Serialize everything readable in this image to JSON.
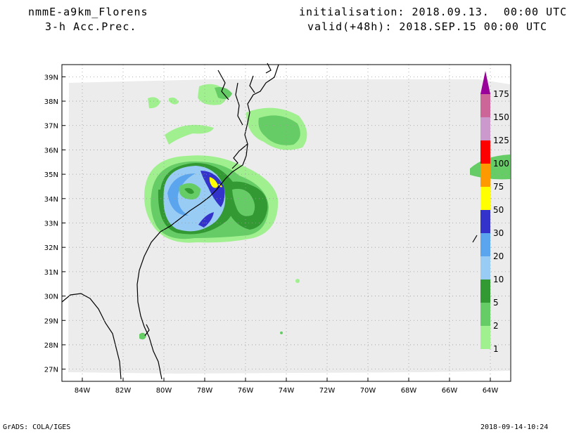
{
  "header": {
    "model": "nmmE-a9km_Florens",
    "field": "3-h Acc.Prec.",
    "initialisation": "initialisation: 2018.09.13.  00:00 UTC",
    "valid": "valid(+48h): 2018.SEP.15 00:00 UTC"
  },
  "footer": {
    "credit": "GrADS: COLA/IGES",
    "timestamp": "2018-09-14-10:24"
  },
  "map": {
    "lon_range": [
      -85,
      -63
    ],
    "lat_range": [
      26.5,
      39.5
    ],
    "lon_ticks": [
      "84W",
      "82W",
      "80W",
      "78W",
      "76W",
      "74W",
      "72W",
      "70W",
      "68W",
      "66W",
      "64W"
    ],
    "lat_ticks": [
      "27N",
      "28N",
      "29N",
      "30N",
      "31N",
      "32N",
      "33N",
      "34N",
      "35N",
      "36N",
      "37N",
      "38N",
      "39N"
    ],
    "grid": "dotted"
  },
  "colorbar": {
    "labels": [
      "1",
      "2",
      "5",
      "10",
      "20",
      "30",
      "50",
      "75",
      "100",
      "125",
      "150",
      "175"
    ],
    "colors": [
      "#a0f090",
      "#66cc66",
      "#339933",
      "#99ccf5",
      "#5aa5ee",
      "#3333cc",
      "#ffff00",
      "#ff9900",
      "#ff0000",
      "#cc99cc",
      "#cc6699",
      "#990099"
    ]
  },
  "colors": {
    "domain_fill": "#ececec",
    "land_line": "#000000"
  }
}
